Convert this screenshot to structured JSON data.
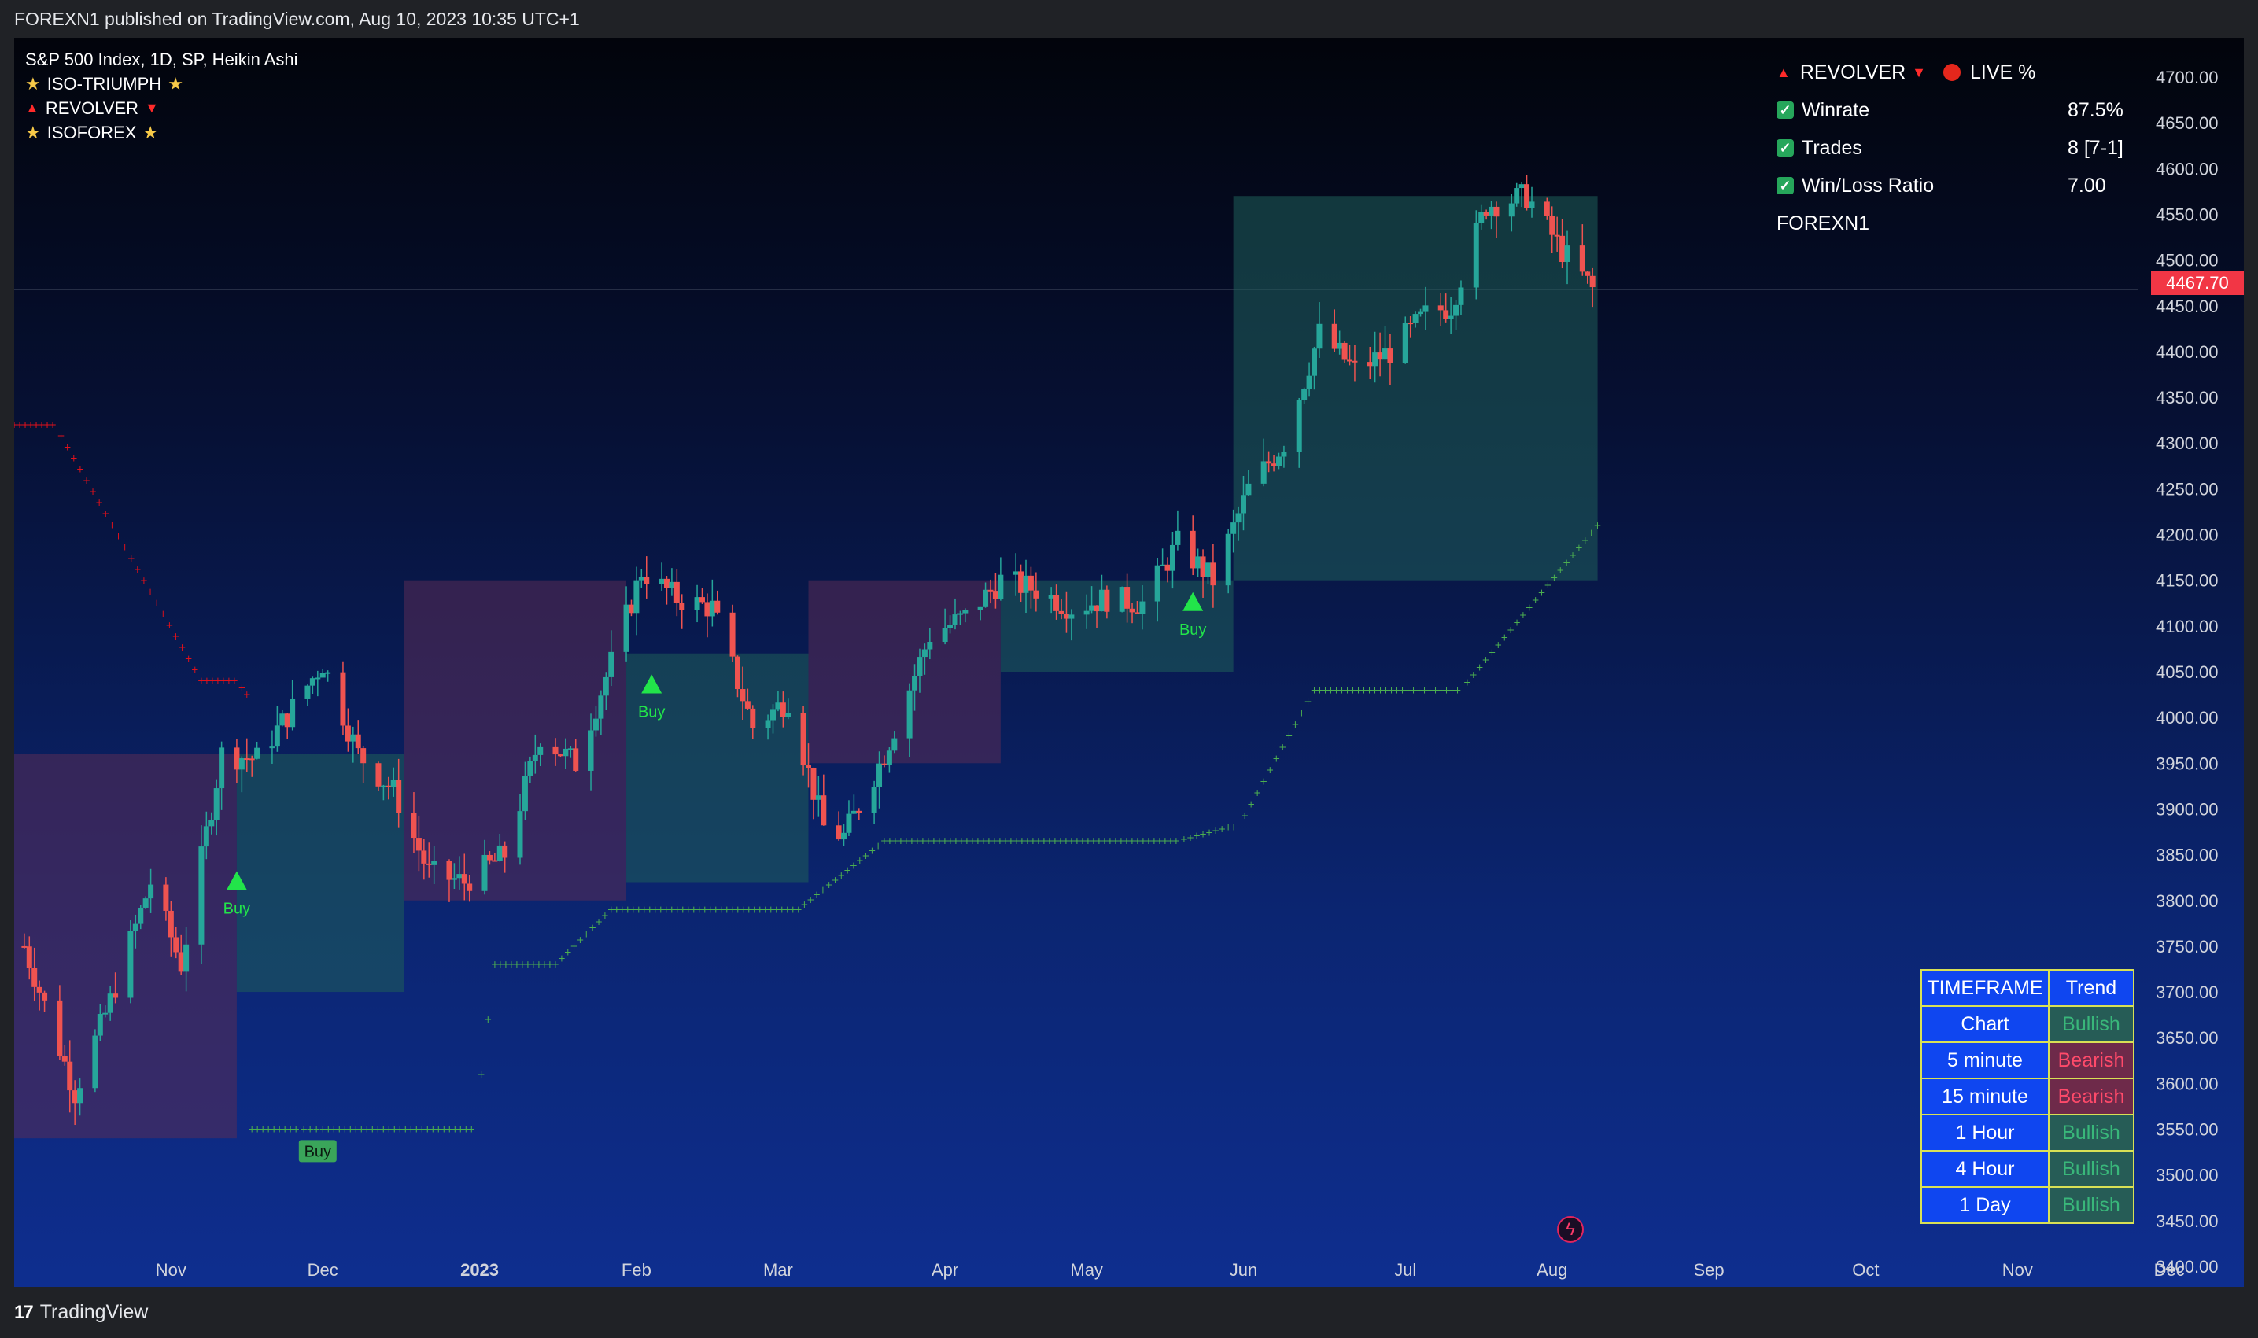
{
  "header": {
    "published": "FOREXN1 published on TradingView.com, Aug 10, 2023 10:35 UTC+1"
  },
  "legend": {
    "symbol": "S&P 500 Index, 1D, SP, Heikin Ashi",
    "items": [
      "ISO-TRIUMPH",
      "REVOLVER",
      "ISOFOREX"
    ]
  },
  "stats": {
    "revolver": "REVOLVER",
    "live": "LIVE %",
    "rows": [
      {
        "label": "Winrate",
        "value": "87.5%"
      },
      {
        "label": "Trades",
        "value": "8 [7-1]"
      },
      {
        "label": "Win/Loss Ratio",
        "value": "7.00"
      }
    ],
    "author": "FOREXN1"
  },
  "trend_table": {
    "headers": [
      "TIMEFRAME",
      "Trend"
    ],
    "rows": [
      {
        "timeframe": "Chart",
        "trend": "Bullish"
      },
      {
        "timeframe": "5 minute",
        "trend": "Bearish"
      },
      {
        "timeframe": "15 minute",
        "trend": "Bearish"
      },
      {
        "timeframe": "1 Hour",
        "trend": "Bullish"
      },
      {
        "timeframe": "4 Hour",
        "trend": "Bullish"
      },
      {
        "timeframe": "1 Day",
        "trend": "Bullish"
      }
    ]
  },
  "last_price": "4467.70",
  "footer": {
    "brand": "TradingView",
    "logo": "17"
  },
  "colors": {
    "up": "#26a69a",
    "down": "#ef5350",
    "buy": "#22e44a",
    "stop_bull": "#4caf50",
    "stop_bear": "#e0101a"
  },
  "chart_data": {
    "type": "candlestick",
    "title": "S&P 500 Index, 1D, SP, Heikin Ashi",
    "y_ticks": [
      3400,
      3450,
      3500,
      3550,
      3600,
      3650,
      3700,
      3750,
      3800,
      3850,
      3900,
      3950,
      4000,
      4050,
      4100,
      4150,
      4200,
      4250,
      4300,
      4350,
      4400,
      4450,
      4500,
      4550,
      4600,
      4650,
      4700
    ],
    "y_tick_labels": [
      "3400.00",
      "3450.00",
      "3500.00",
      "3550.00",
      "3600.00",
      "3650.00",
      "3700.00",
      "3750.00",
      "3800.00",
      "3850.00",
      "3900.00",
      "3950.00",
      "4000.00",
      "4050.00",
      "4100.00",
      "4150.00",
      "4200.00",
      "4250.00",
      "4300.00",
      "4350.00",
      "4400.00",
      "4450.00",
      "4500.00",
      "4550.00",
      "4600.00",
      "4650.00",
      "4700.00"
    ],
    "ylim": [
      3370,
      4720
    ],
    "x_labels": [
      {
        "label": "Nov",
        "date": "2022-11-01"
      },
      {
        "label": "Dec",
        "date": "2022-12-01"
      },
      {
        "label": "2023",
        "date": "2023-01-01",
        "bold": true
      },
      {
        "label": "Feb",
        "date": "2023-02-01"
      },
      {
        "label": "Mar",
        "date": "2023-03-01"
      },
      {
        "label": "Apr",
        "date": "2023-04-03"
      },
      {
        "label": "May",
        "date": "2023-05-01"
      },
      {
        "label": "Jun",
        "date": "2023-06-01"
      },
      {
        "label": "Jul",
        "date": "2023-07-03"
      },
      {
        "label": "Aug",
        "date": "2023-08-01"
      },
      {
        "label": "Sep",
        "date": "2023-09-01"
      },
      {
        "label": "Oct",
        "date": "2023-10-02"
      },
      {
        "label": "Nov",
        "date": "2023-11-01"
      },
      {
        "label": "Dec",
        "date": "2023-12-01"
      }
    ],
    "price_path": [
      {
        "date": "2022-10-03",
        "close": 3750
      },
      {
        "date": "2022-10-13",
        "close": 3590
      },
      {
        "date": "2022-10-20",
        "close": 3690
      },
      {
        "date": "2022-10-28",
        "close": 3820
      },
      {
        "date": "2022-11-03",
        "close": 3730
      },
      {
        "date": "2022-11-11",
        "close": 3960
      },
      {
        "date": "2022-11-18",
        "close": 3955
      },
      {
        "date": "2022-11-25",
        "close": 4010
      },
      {
        "date": "2022-12-01",
        "close": 4060
      },
      {
        "date": "2022-12-08",
        "close": 3960
      },
      {
        "date": "2022-12-15",
        "close": 3920
      },
      {
        "date": "2022-12-22",
        "close": 3830
      },
      {
        "date": "2022-12-29",
        "close": 3820
      },
      {
        "date": "2023-01-06",
        "close": 3850
      },
      {
        "date": "2023-01-13",
        "close": 3980
      },
      {
        "date": "2023-01-20",
        "close": 3950
      },
      {
        "date": "2023-01-27",
        "close": 4060
      },
      {
        "date": "2023-02-02",
        "close": 4160
      },
      {
        "date": "2023-02-09",
        "close": 4130
      },
      {
        "date": "2023-02-16",
        "close": 4120
      },
      {
        "date": "2023-02-24",
        "close": 3990
      },
      {
        "date": "2023-03-03",
        "close": 4020
      },
      {
        "date": "2023-03-10",
        "close": 3880
      },
      {
        "date": "2023-03-14",
        "close": 3870
      },
      {
        "date": "2023-03-22",
        "close": 3960
      },
      {
        "date": "2023-03-31",
        "close": 4090
      },
      {
        "date": "2023-04-07",
        "close": 4110
      },
      {
        "date": "2023-04-14",
        "close": 4150
      },
      {
        "date": "2023-04-21",
        "close": 4140
      },
      {
        "date": "2023-04-28",
        "close": 4120
      },
      {
        "date": "2023-05-05",
        "close": 4130
      },
      {
        "date": "2023-05-12",
        "close": 4125
      },
      {
        "date": "2023-05-19",
        "close": 4190
      },
      {
        "date": "2023-05-26",
        "close": 4150
      },
      {
        "date": "2023-06-02",
        "close": 4250
      },
      {
        "date": "2023-06-09",
        "close": 4300
      },
      {
        "date": "2023-06-16",
        "close": 4420
      },
      {
        "date": "2023-06-23",
        "close": 4380
      },
      {
        "date": "2023-06-30",
        "close": 4400
      },
      {
        "date": "2023-07-07",
        "close": 4440
      },
      {
        "date": "2023-07-12",
        "close": 4450
      },
      {
        "date": "2023-07-19",
        "close": 4560
      },
      {
        "date": "2023-07-27",
        "close": 4570
      },
      {
        "date": "2023-08-03",
        "close": 4510
      },
      {
        "date": "2023-08-09",
        "close": 4468
      }
    ],
    "stop_bull": [
      {
        "from": "2022-11-17",
        "to": "2022-11-26",
        "value": 3550
      },
      {
        "from": "2022-12-01",
        "to": "2022-12-31",
        "value": 3550
      },
      {
        "from": "2023-01-04",
        "to": "2023-01-16",
        "value": 3730
      },
      {
        "from": "2023-01-27",
        "to": "2023-03-05",
        "value": 3790
      },
      {
        "from": "2023-03-22",
        "to": "2023-05-19",
        "value": 3865
      },
      {
        "from": "2023-05-29",
        "to": "2023-05-31",
        "value": 3880
      },
      {
        "from": "2023-06-15",
        "to": "2023-07-14",
        "value": 4030
      },
      {
        "from": "2023-08-10",
        "to": "2023-08-10",
        "value": 4210
      }
    ],
    "stop_bear": [
      {
        "from": "2022-10-01",
        "to": "2022-10-09",
        "value": 4320
      },
      {
        "from": "2022-11-07",
        "to": "2022-11-14",
        "value": 4040
      },
      {
        "from": "2022-11-16",
        "to": "2022-11-17",
        "value": 4025
      }
    ],
    "signals": [
      {
        "date": "2022-11-14",
        "value": 3820,
        "label": "Buy"
      },
      {
        "date": "2023-02-04",
        "value": 4035,
        "label": "Buy"
      },
      {
        "date": "2023-05-22",
        "value": 4125,
        "label": "Buy"
      },
      {
        "date": "2022-11-30",
        "value": 3545,
        "label": "Buy",
        "style": "box"
      }
    ]
  }
}
